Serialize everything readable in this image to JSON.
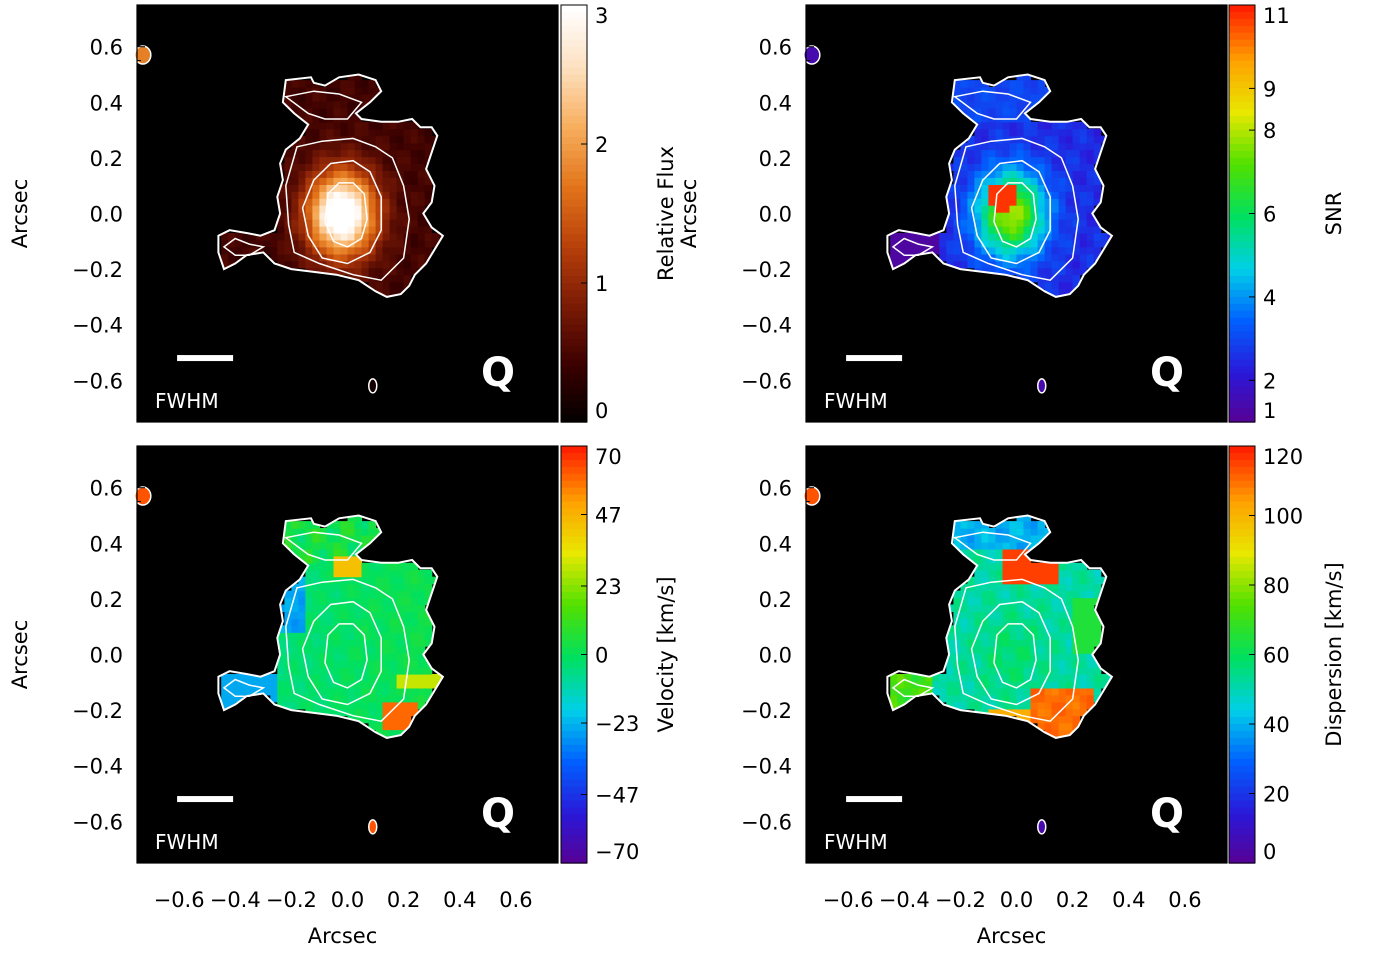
{
  "chart_data": [
    {
      "type": "heatmap",
      "panel": "flux",
      "ylabel": "Arcsec",
      "xlabel": "",
      "colorbar_label": "Relative Flux",
      "colorbar_ticks": [
        "0",
        "1",
        "2",
        "3"
      ],
      "colorbar_range": [
        0,
        3
      ],
      "colormap": [
        "#000000",
        "#3a0000",
        "#7a1a05",
        "#b8400a",
        "#e2741a",
        "#f7ae5c",
        "#fde0c0",
        "#ffffff"
      ],
      "xlim": [
        -0.75,
        0.75
      ],
      "ylim": [
        -0.75,
        0.75
      ],
      "annotation": "FWHM",
      "marker": "Q",
      "peak": [
        -0.02,
        0.0
      ],
      "peak_value": 3.0
    },
    {
      "type": "heatmap",
      "panel": "snr",
      "ylabel": "Arcsec",
      "xlabel": "",
      "colorbar_label": "SNR",
      "colorbar_ticks": [
        "1",
        "2",
        "4",
        "6",
        "8",
        "9",
        "11"
      ],
      "colorbar_range": [
        1,
        11
      ],
      "colormap": [
        "#5a0090",
        "#2a18d8",
        "#0060ff",
        "#00d0e8",
        "#00e060",
        "#50e000",
        "#e8e800",
        "#ffa000",
        "#ff2000"
      ],
      "xlim": [
        -0.75,
        0.75
      ],
      "ylim": [
        -0.75,
        0.75
      ],
      "annotation": "FWHM",
      "marker": "Q",
      "peak": [
        -0.02,
        0.05
      ],
      "peak_value": 11
    },
    {
      "type": "heatmap",
      "panel": "velocity",
      "ylabel": "Arcsec",
      "xlabel": "Arcsec",
      "colorbar_label": "Velocity [km/s]",
      "colorbar_ticks": [
        "−70",
        "−47",
        "−23",
        "0",
        "23",
        "47",
        "70"
      ],
      "colorbar_range": [
        -70,
        70
      ],
      "colormap": [
        "#5a0090",
        "#2a18d8",
        "#0060ff",
        "#00d0e8",
        "#00e060",
        "#50e000",
        "#e8e800",
        "#ffa000",
        "#ff2000"
      ],
      "xlim": [
        -0.75,
        0.75
      ],
      "ylim": [
        -0.75,
        0.75
      ],
      "annotation": "FWHM",
      "marker": "Q",
      "xticks": [
        "−0.6",
        "−0.4",
        "−0.2",
        "0.0",
        "0.2",
        "0.4",
        "0.6"
      ]
    },
    {
      "type": "heatmap",
      "panel": "dispersion",
      "ylabel": "",
      "xlabel": "Arcsec",
      "colorbar_label": "Dispersion [km/s]",
      "colorbar_ticks": [
        "0",
        "20",
        "40",
        "60",
        "80",
        "100",
        "120"
      ],
      "colorbar_range": [
        0,
        120
      ],
      "colormap": [
        "#5a0090",
        "#2a18d8",
        "#0060ff",
        "#00d0e8",
        "#00e060",
        "#50e000",
        "#e8e800",
        "#ffa000",
        "#ff2000"
      ],
      "xlim": [
        -0.75,
        0.75
      ],
      "ylim": [
        -0.75,
        0.75
      ],
      "annotation": "FWHM",
      "marker": "Q",
      "xticks": [
        "−0.6",
        "−0.4",
        "−0.2",
        "0.0",
        "0.2",
        "0.4",
        "0.6"
      ]
    }
  ],
  "yticks": [
    "0.6",
    "0.4",
    "0.2",
    "0.0",
    "−0.2",
    "−0.4",
    "−0.6"
  ],
  "ytick_values": [
    0.6,
    0.4,
    0.2,
    0.0,
    -0.2,
    -0.4,
    -0.6
  ],
  "xtick_values": [
    -0.6,
    -0.4,
    -0.2,
    0.0,
    0.2,
    0.4,
    0.6
  ],
  "colors": {
    "background": "#000000",
    "contour": "#ffffff",
    "frame": "#000000"
  }
}
